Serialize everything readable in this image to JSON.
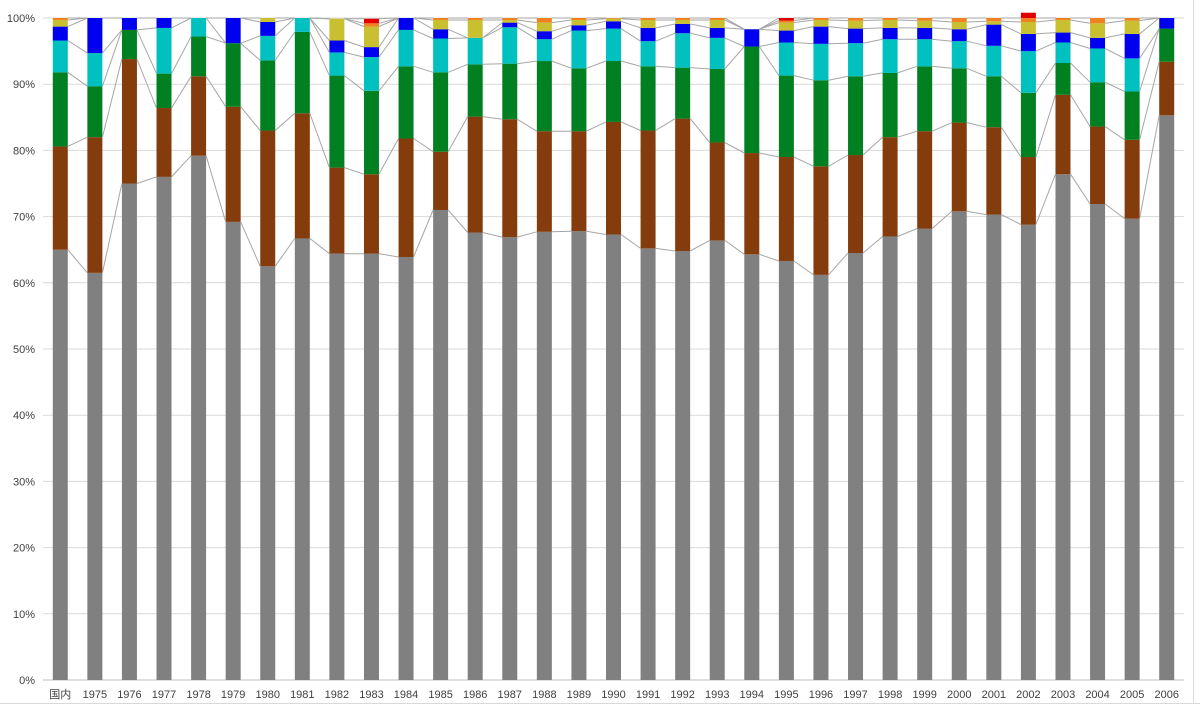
{
  "chart_data": {
    "type": "bar",
    "stacked": true,
    "percent": true,
    "ylim": [
      0,
      100
    ],
    "y_ticks": [
      "0%",
      "10%",
      "20%",
      "30%",
      "40%",
      "50%",
      "60%",
      "70%",
      "80%",
      "90%",
      "100%"
    ],
    "grid": true,
    "series_lines": true,
    "categories": [
      "国内",
      "1975",
      "1976",
      "1977",
      "1978",
      "1979",
      "1980",
      "1981",
      "1982",
      "1983",
      "1984",
      "1985",
      "1986",
      "1987",
      "1988",
      "1989",
      "1990",
      "1991",
      "1992",
      "1993",
      "1994",
      "1995",
      "1996",
      "1997",
      "1998",
      "1999",
      "2000",
      "2001",
      "2002",
      "2003",
      "2004",
      "2005",
      "2006"
    ],
    "series": [
      {
        "color": "#808080",
        "values": [
          65.0,
          61.5,
          75.0,
          76.0,
          79.2,
          69.2,
          62.5,
          66.7,
          64.4,
          64.4,
          63.9,
          71.0,
          67.6,
          66.9,
          67.7,
          67.8,
          67.3,
          65.2,
          64.8,
          66.4,
          64.3,
          63.3,
          61.2,
          64.5,
          67.0,
          68.2,
          70.8,
          70.3,
          68.8,
          76.4,
          71.9,
          69.7,
          85.3
        ]
      },
      {
        "color": "#843c0c",
        "values": [
          15.6,
          20.5,
          18.8,
          10.4,
          12.0,
          17.4,
          20.5,
          18.9,
          13.0,
          12.0,
          17.9,
          8.8,
          17.5,
          17.8,
          15.2,
          15.1,
          17.0,
          17.8,
          20.0,
          14.8,
          15.3,
          15.7,
          16.4,
          14.8,
          15.0,
          14.7,
          13.4,
          13.2,
          10.2,
          12.0,
          11.7,
          11.9,
          8.1
        ]
      },
      {
        "color": "#008020",
        "values": [
          11.2,
          7.7,
          4.4,
          5.2,
          6.0,
          9.6,
          10.6,
          12.3,
          13.9,
          12.6,
          10.9,
          12.0,
          7.9,
          8.4,
          10.6,
          9.5,
          9.2,
          9.7,
          7.7,
          11.1,
          16.1,
          12.3,
          13.0,
          11.9,
          9.7,
          9.8,
          8.2,
          7.7,
          9.7,
          4.8,
          6.7,
          7.3,
          5.0
        ]
      },
      {
        "color": "#00c0c0",
        "values": [
          4.8,
          5.0,
          0,
          6.9,
          2.8,
          0,
          3.7,
          2.1,
          3.5,
          5.1,
          5.5,
          5.1,
          4.0,
          5.5,
          3.3,
          5.7,
          4.9,
          3.8,
          5.2,
          4.7,
          0,
          5.0,
          5.5,
          5.0,
          5.1,
          4.1,
          4.1,
          4.6,
          6.3,
          3.1,
          5.1,
          5.0,
          0
        ]
      },
      {
        "color": "#0000f0",
        "values": [
          2.1,
          5.3,
          1.8,
          1.5,
          0,
          3.8,
          2.1,
          0,
          1.8,
          1.5,
          1.8,
          1.4,
          0,
          0.7,
          1.2,
          0.8,
          1.1,
          2.0,
          1.4,
          1.5,
          2.6,
          1.8,
          2.6,
          2.2,
          1.7,
          1.7,
          1.8,
          3.2,
          2.6,
          1.5,
          1.6,
          3.7,
          1.6
        ]
      },
      {
        "color": "#c8c030",
        "values": [
          1.0,
          0,
          0,
          0,
          0,
          0,
          0.6,
          0,
          3.3,
          3.1,
          0,
          1.4,
          2.7,
          0.4,
          1.3,
          0.8,
          0.4,
          1.2,
          0.6,
          1.2,
          0,
          1.2,
          1.0,
          1.2,
          1.2,
          1.1,
          1.1,
          0.5,
          1.8,
          1.9,
          2.2,
          2.0,
          0
        ]
      },
      {
        "color": "#f08020",
        "values": [
          0.3,
          0,
          0,
          0,
          0,
          0,
          0,
          0,
          0,
          0.5,
          0,
          0.3,
          0.3,
          0.3,
          0.7,
          0.3,
          0.1,
          0.3,
          0.3,
          0.3,
          0,
          0.3,
          0.3,
          0.4,
          0.3,
          0.4,
          0.6,
          0.5,
          0.6,
          0.3,
          0.8,
          0.4,
          0
        ]
      },
      {
        "color": "#e00000",
        "values": [
          0,
          0,
          0,
          0,
          0,
          0,
          0,
          0,
          0,
          0.7,
          0,
          0,
          0,
          0,
          0,
          0,
          0,
          0,
          0,
          0,
          0,
          0.4,
          0,
          0,
          0,
          0,
          0,
          0,
          0.8,
          0,
          0,
          0,
          0
        ]
      }
    ]
  }
}
